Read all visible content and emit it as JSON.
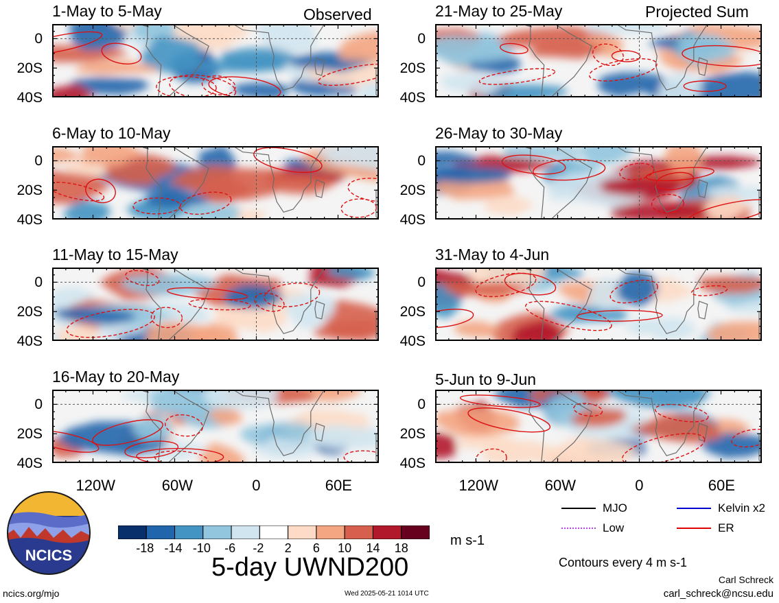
{
  "figure": {
    "title": "5-day UWND200",
    "units": "m s-1",
    "contour_note": "Contours every 4 m s-1",
    "author": "Carl Schreck",
    "email": "carl_schreck@ncsu.edu",
    "site": "ncics.org/mjo",
    "timestamp": "Wed 2025-05-21 1014 UTC",
    "logo_text": "NCICS"
  },
  "columns": {
    "left_label": "Observed",
    "right_label": "Projected Sum"
  },
  "panels": [
    {
      "title": "1-May to 5-May"
    },
    {
      "title": "21-May to 25-May"
    },
    {
      "title": "6-May to 10-May"
    },
    {
      "title": "26-May to 30-May"
    },
    {
      "title": "11-May to 15-May"
    },
    {
      "title": "31-May to 4-Jun"
    },
    {
      "title": "16-May to 20-May"
    },
    {
      "title": "5-Jun to 9-Jun"
    }
  ],
  "axes": {
    "y_ticks": [
      "0",
      "20S",
      "40S"
    ],
    "x_ticks": [
      "120W",
      "60W",
      "0",
      "60E"
    ]
  },
  "colorbar": {
    "ticks": [
      "-18",
      "-14",
      "-10",
      "-6",
      "-2",
      "2",
      "6",
      "10",
      "14",
      "18"
    ],
    "colors": [
      "#08306b",
      "#2166ac",
      "#4393c3",
      "#92c5de",
      "#d1e5f0",
      "#ffffff",
      "#fddbc7",
      "#f4a582",
      "#d6604d",
      "#b2182b",
      "#67001f"
    ]
  },
  "legend": [
    {
      "label": "MJO",
      "color": "#000000",
      "style": "solid"
    },
    {
      "label": "Kelvin x2",
      "color": "#0000cc",
      "style": "solid"
    },
    {
      "label": "Low",
      "color": "#b040e0",
      "style": "dotted"
    },
    {
      "label": "ER",
      "color": "#dd0000",
      "style": "solid"
    }
  ]
}
